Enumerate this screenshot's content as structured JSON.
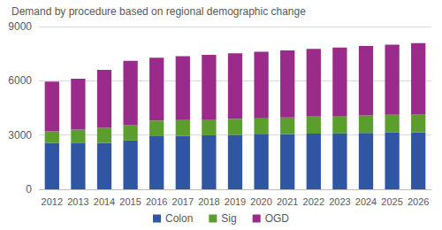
{
  "chart_data": {
    "type": "bar",
    "title": "Demand by procedure based on regional demographic change",
    "categories": [
      "2012",
      "2013",
      "2014",
      "2015",
      "2016",
      "2017",
      "2018",
      "2019",
      "2020",
      "2021",
      "2022",
      "2023",
      "2024",
      "2025",
      "2026"
    ],
    "series": [
      {
        "name": "Colon",
        "color": "#2f55a3",
        "values": [
          2550,
          2550,
          2570,
          2700,
          2930,
          2960,
          2990,
          3010,
          3030,
          3060,
          3080,
          3100,
          3120,
          3140,
          3160
        ]
      },
      {
        "name": "Sig",
        "color": "#5b9e2e",
        "values": [
          650,
          750,
          830,
          850,
          870,
          870,
          880,
          890,
          900,
          920,
          940,
          960,
          970,
          980,
          990
        ]
      },
      {
        "name": "OGD",
        "color": "#9b2b8b",
        "values": [
          2760,
          2820,
          3200,
          3550,
          3480,
          3530,
          3570,
          3620,
          3670,
          3700,
          3740,
          3780,
          3830,
          3880,
          3930
        ]
      }
    ],
    "stacked": true,
    "ylim": [
      0,
      9000
    ],
    "yticks": [
      0,
      3000,
      6000,
      9000
    ],
    "grid": true,
    "legend": "bottom"
  }
}
